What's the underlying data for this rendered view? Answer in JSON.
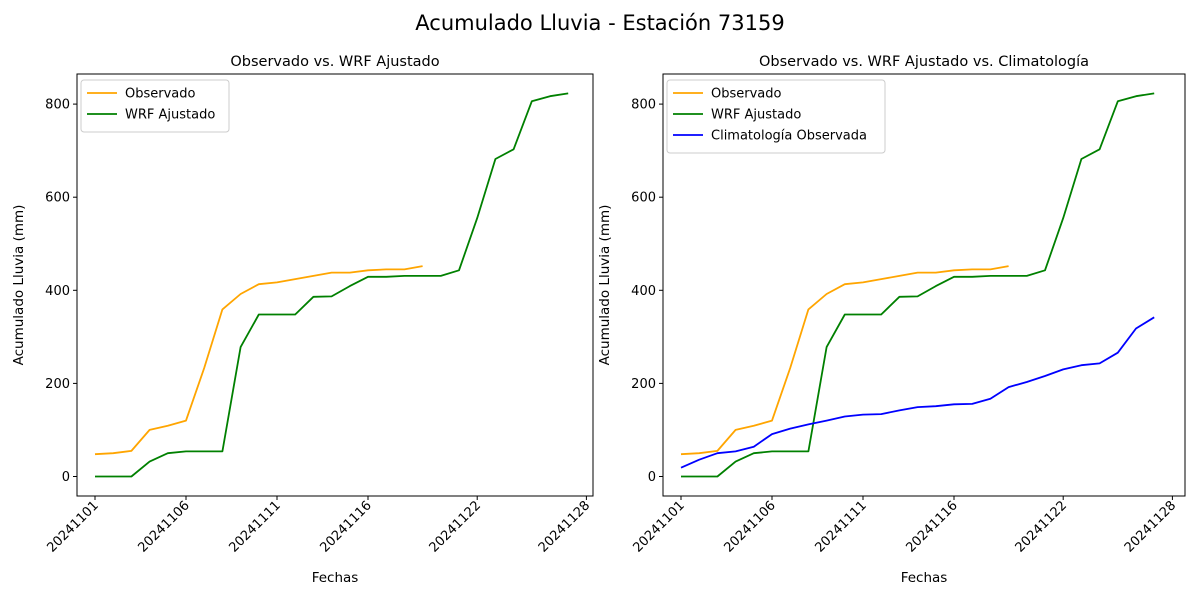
{
  "suptitle": "Acumulado Lluvia - Estación 73159",
  "chart_data": [
    {
      "type": "line",
      "title": "Observado vs. WRF Ajustado",
      "xlabel": "Fechas",
      "ylabel": "Acumulado Lluvia (mm)",
      "xtick_labels": [
        "20241101",
        "20241106",
        "20241111",
        "20241116",
        "20241122",
        "20241128"
      ],
      "ytick_labels": [
        "0",
        "200",
        "400",
        "600",
        "800"
      ],
      "legend_position": "upper-left",
      "grid": false,
      "series": [
        {
          "name": "Observado",
          "color": "#ffa500",
          "values": [
            48,
            50,
            55,
            100,
            109,
            120,
            233,
            359,
            392,
            413,
            417,
            424,
            431,
            438,
            438,
            443,
            445,
            445,
            452
          ]
        },
        {
          "name": "WRF Ajustado",
          "color": "#008000",
          "values": [
            0,
            0,
            0,
            32,
            50,
            54,
            54,
            54,
            278,
            348,
            348,
            348,
            386,
            387,
            409,
            429,
            429,
            431,
            431,
            431,
            443,
            555,
            682,
            703,
            806,
            817,
            823
          ]
        }
      ]
    },
    {
      "type": "line",
      "title": "Observado vs. WRF Ajustado vs. Climatología",
      "xlabel": "Fechas",
      "ylabel": "Acumulado Lluvia (mm)",
      "xtick_labels": [
        "20241101",
        "20241106",
        "20241111",
        "20241116",
        "20241122",
        "20241128"
      ],
      "ytick_labels": [
        "0",
        "200",
        "400",
        "600",
        "800"
      ],
      "legend_position": "upper-left",
      "grid": false,
      "series": [
        {
          "name": "Observado",
          "color": "#ffa500",
          "values": [
            48,
            50,
            55,
            100,
            109,
            120,
            233,
            359,
            392,
            413,
            417,
            424,
            431,
            438,
            438,
            443,
            445,
            445,
            452
          ]
        },
        {
          "name": "WRF Ajustado",
          "color": "#008000",
          "values": [
            0,
            0,
            0,
            32,
            50,
            54,
            54,
            54,
            278,
            348,
            348,
            348,
            386,
            387,
            409,
            429,
            429,
            431,
            431,
            431,
            443,
            555,
            682,
            703,
            806,
            817,
            823
          ]
        },
        {
          "name": "Climatología Observada",
          "color": "#0000ff",
          "values": [
            19,
            36,
            50,
            54,
            64,
            91,
            103,
            112,
            120,
            129,
            133,
            134,
            142,
            149,
            151,
            155,
            156,
            167,
            192,
            203,
            216,
            230,
            239,
            243,
            266,
            318,
            342
          ]
        }
      ]
    }
  ]
}
